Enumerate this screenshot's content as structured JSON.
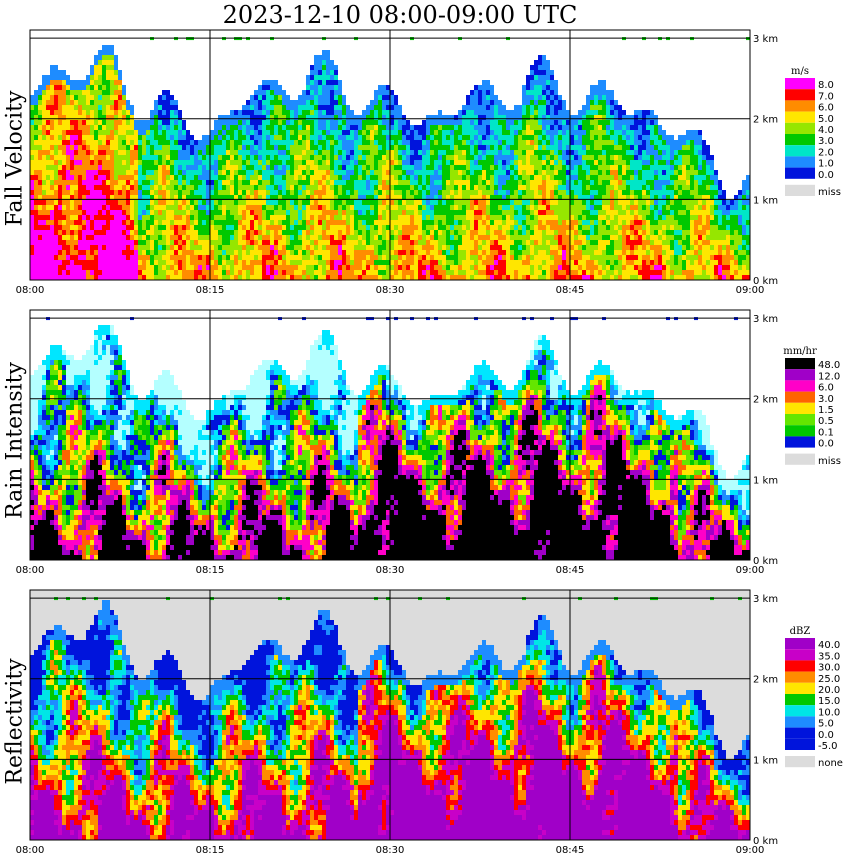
{
  "title": "2023-12-10   08:00-09:00 UTC",
  "chart_data": [
    {
      "type": "heatmap",
      "name": "Fall Velocity",
      "unit": "m/s",
      "x_ticks": [
        "08:00",
        "08:15",
        "08:30",
        "08:45",
        "09:00"
      ],
      "y_ticks": [
        "0 km",
        "1 km",
        "2 km",
        "3 km"
      ],
      "ylim": [
        0,
        3.1
      ],
      "legend": [
        {
          "label": "8.0",
          "color": "#ff00ff"
        },
        {
          "label": "7.0",
          "color": "#ff0000"
        },
        {
          "label": "6.0",
          "color": "#ff8c00"
        },
        {
          "label": "5.0",
          "color": "#ffe600"
        },
        {
          "label": "4.0",
          "color": "#96e600"
        },
        {
          "label": "3.0",
          "color": "#00c800"
        },
        {
          "label": "2.0",
          "color": "#00e6c8"
        },
        {
          "label": "1.0",
          "color": "#1e8cff"
        },
        {
          "label": "0.0",
          "color": "#0014dc"
        },
        {
          "label": "miss",
          "color": "#dcdcdc"
        }
      ],
      "palette": [
        "#0014dc",
        "#1e8cff",
        "#00e6c8",
        "#00c800",
        "#96e600",
        "#ffe600",
        "#ff8c00",
        "#ff0000",
        "#ff00ff"
      ]
    },
    {
      "type": "heatmap",
      "name": "Rain Intensity",
      "unit": "mm/hr",
      "x_ticks": [
        "08:00",
        "08:15",
        "08:30",
        "08:45",
        "09:00"
      ],
      "y_ticks": [
        "0 km",
        "1 km",
        "2 km",
        "3 km"
      ],
      "ylim": [
        0,
        3.1
      ],
      "legend": [
        {
          "label": "48.0",
          "color": "#000000"
        },
        {
          "label": "12.0",
          "color": "#a000c8"
        },
        {
          "label": "6.0",
          "color": "#ff00c8"
        },
        {
          "label": "3.0",
          "color": "#ff6400"
        },
        {
          "label": "1.5",
          "color": "#ffe600"
        },
        {
          "label": "0.5",
          "color": "#64e600"
        },
        {
          "label": "0.1",
          "color": "#00c800"
        },
        {
          "label": "0.0",
          "color": "#0014dc"
        },
        {
          "label": "miss",
          "color": "#dcdcdc"
        }
      ],
      "palette": [
        "#b4ffff",
        "#00e6ff",
        "#1e8cff",
        "#0014dc",
        "#00c800",
        "#64e600",
        "#ffe600",
        "#ff6400",
        "#ff00c8",
        "#a000c8",
        "#000000"
      ]
    },
    {
      "type": "heatmap",
      "name": "Reflectivity",
      "unit": "dBZ",
      "x_ticks": [
        "08:00",
        "08:15",
        "08:30",
        "08:45",
        "09:00"
      ],
      "y_ticks": [
        "0 km",
        "1 km",
        "2 km",
        "3 km"
      ],
      "ylim": [
        0,
        3.1
      ],
      "legend": [
        {
          "label": "40.0",
          "color": "#a000c8"
        },
        {
          "label": "35.0",
          "color": "#c800c8"
        },
        {
          "label": "30.0",
          "color": "#ff0000"
        },
        {
          "label": "25.0",
          "color": "#ff8c00"
        },
        {
          "label": "20.0",
          "color": "#ffe600"
        },
        {
          "label": "15.0",
          "color": "#00c800"
        },
        {
          "label": "10.0",
          "color": "#00e6e6"
        },
        {
          "label": "5.0",
          "color": "#1e8cff"
        },
        {
          "label": "0.0",
          "color": "#0014dc"
        },
        {
          "label": "-5.0",
          "color": "#0014dc"
        },
        {
          "label": "none",
          "color": "#dcdcdc"
        }
      ],
      "palette": [
        "#0014dc",
        "#1e8cff",
        "#00e6e6",
        "#00c800",
        "#ffe600",
        "#ff8c00",
        "#ff0000",
        "#c800c8",
        "#a000c8"
      ]
    }
  ]
}
